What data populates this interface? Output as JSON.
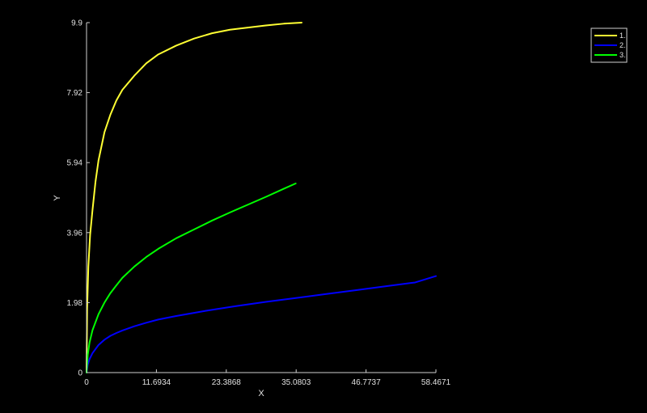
{
  "chart_data": {
    "type": "line",
    "xlabel": "X",
    "ylabel": "Y",
    "xlim": [
      0,
      58.4671
    ],
    "ylim": [
      0,
      9.9
    ],
    "xticks": [
      "0",
      "11.6934",
      "23.3868",
      "35.0803",
      "46.7737",
      "58.4671"
    ],
    "yticks": [
      "0",
      "1.98",
      "3.96",
      "5.94",
      "7.92",
      "9.9"
    ],
    "grid": false,
    "legend_position": "top-right",
    "series": [
      {
        "name": "1.",
        "color": "#ffff33",
        "x": [
          0,
          0.1,
          0.3,
          0.6,
          1,
          1.5,
          2,
          3,
          4,
          5,
          6,
          8,
          10,
          12,
          15,
          18,
          21,
          24,
          27,
          30,
          33,
          36
        ],
        "y": [
          0,
          1.8,
          3.0,
          3.9,
          4.6,
          5.4,
          6.0,
          6.8,
          7.3,
          7.7,
          8.0,
          8.4,
          8.75,
          9.0,
          9.25,
          9.45,
          9.6,
          9.7,
          9.76,
          9.82,
          9.87,
          9.9
        ]
      },
      {
        "name": "2.",
        "color": "#0000ff",
        "x": [
          0,
          0.2,
          0.5,
          1,
          2,
          3,
          4,
          5,
          6,
          8,
          10,
          12,
          15,
          20,
          25,
          30,
          35,
          40,
          45,
          50,
          55,
          58.4671
        ],
        "y": [
          0,
          0.22,
          0.38,
          0.55,
          0.78,
          0.93,
          1.04,
          1.12,
          1.19,
          1.31,
          1.41,
          1.5,
          1.6,
          1.75,
          1.88,
          2.0,
          2.11,
          2.22,
          2.33,
          2.44,
          2.55,
          2.73
        ]
      },
      {
        "name": "3.",
        "color": "#00ff00",
        "x": [
          0,
          0.2,
          0.5,
          1,
          2,
          3,
          4,
          5,
          6,
          8,
          10,
          12,
          15,
          18,
          21,
          24,
          27,
          30,
          33,
          35
        ],
        "y": [
          0,
          0.5,
          0.85,
          1.2,
          1.65,
          1.98,
          2.25,
          2.47,
          2.68,
          3.0,
          3.27,
          3.5,
          3.8,
          4.05,
          4.3,
          4.53,
          4.75,
          4.97,
          5.2,
          5.35
        ]
      }
    ]
  }
}
